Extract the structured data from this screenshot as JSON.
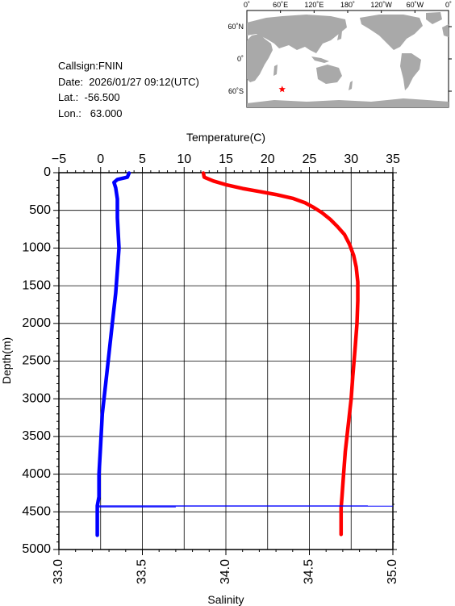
{
  "header": {
    "callsign": "Callsign:FNIN",
    "date": "Date:  2026/01/27 09:12(UTC)",
    "lat": "Lat.:  -56.500",
    "lon": "Lon.:   63.000"
  },
  "map": {
    "lon_labels": [
      "0˚",
      "60˚E",
      "120˚E",
      "180˚",
      "120˚W",
      "60˚W",
      "0˚"
    ],
    "lat_labels": [
      "60˚N",
      "0˚",
      "60˚S"
    ],
    "ocean_color": "#ffffff",
    "land_color": "#a9a9a9",
    "marker": {
      "lat": -56.5,
      "lon": 63.0,
      "symbol": "star",
      "color": "#ff0000"
    }
  },
  "chart_data": {
    "type": "line",
    "ylabel": "Depth(m)",
    "ylim": [
      0,
      5000
    ],
    "y_inverted": true,
    "y_ticks": [
      0,
      500,
      1000,
      1500,
      2000,
      2500,
      3000,
      3500,
      4000,
      4500,
      5000
    ],
    "top_axis": {
      "label": "Temperature(C)",
      "range": [
        -5,
        35
      ],
      "ticks": [
        -5,
        0,
        5,
        10,
        15,
        20,
        25,
        30,
        35
      ]
    },
    "bottom_axis": {
      "label": "Salinity",
      "range": [
        33.0,
        35.0
      ],
      "ticks": [
        "33.0",
        "33.5",
        "34.0",
        "34.5",
        "35.0"
      ]
    },
    "grid": true,
    "series": [
      {
        "axis": "temperature",
        "color": "#ff0000",
        "points": [
          [
            12.3,
            5
          ],
          [
            12.4,
            60
          ],
          [
            13.5,
            110
          ],
          [
            15.0,
            160
          ],
          [
            17.0,
            210
          ],
          [
            19.0,
            250
          ],
          [
            21.0,
            290
          ],
          [
            23.0,
            340
          ],
          [
            24.5,
            400
          ],
          [
            25.5,
            460
          ],
          [
            26.5,
            530
          ],
          [
            27.5,
            620
          ],
          [
            28.4,
            720
          ],
          [
            29.2,
            820
          ],
          [
            29.8,
            950
          ],
          [
            30.3,
            1100
          ],
          [
            30.6,
            1250
          ],
          [
            30.8,
            1450
          ],
          [
            30.8,
            1700
          ],
          [
            30.7,
            2000
          ],
          [
            30.5,
            2300
          ],
          [
            30.2,
            2700
          ],
          [
            30.0,
            3000
          ],
          [
            29.5,
            3500
          ],
          [
            29.3,
            3700
          ],
          [
            29.1,
            4000
          ],
          [
            28.9,
            4300
          ],
          [
            28.8,
            4450
          ],
          [
            28.8,
            4600
          ],
          [
            28.8,
            4800
          ]
        ]
      },
      {
        "axis": "salinity",
        "color": "#0000ff",
        "points": [
          [
            33.42,
            5
          ],
          [
            33.41,
            60
          ],
          [
            33.35,
            90
          ],
          [
            33.33,
            130
          ],
          [
            33.34,
            200
          ],
          [
            33.35,
            350
          ],
          [
            33.35,
            600
          ],
          [
            33.36,
            1000
          ],
          [
            33.35,
            1300
          ],
          [
            33.34,
            1600
          ],
          [
            33.32,
            2000
          ],
          [
            33.3,
            2400
          ],
          [
            33.28,
            2800
          ],
          [
            33.26,
            3200
          ],
          [
            33.25,
            3600
          ],
          [
            33.24,
            4000
          ],
          [
            33.24,
            4300
          ],
          [
            33.23,
            4420
          ],
          [
            33.23,
            4600
          ],
          [
            33.23,
            4810
          ]
        ]
      }
    ],
    "spikes": [
      {
        "axis": "salinity",
        "depth": 4420,
        "to": 34.85,
        "color": "#0000ff"
      },
      {
        "axis": "salinity",
        "depth": 4425,
        "to": 35.0,
        "color": "#0000ff"
      },
      {
        "axis": "salinity",
        "depth": 4435,
        "to": 33.7,
        "color": "#0000ff"
      }
    ]
  }
}
